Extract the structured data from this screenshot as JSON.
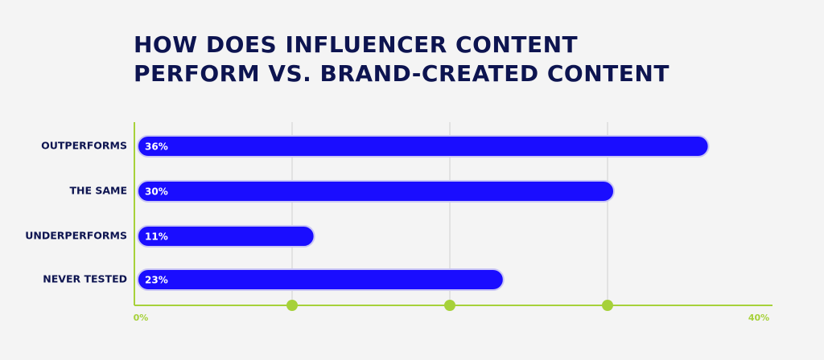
{
  "chart_data": {
    "type": "bar",
    "orientation": "horizontal",
    "title": "HOW DOES INFLUENCER CONTENT PERFORM VS. BRAND-CREATED CONTENT",
    "categories": [
      "OUTPERFORMS",
      "THE SAME",
      "UNDERPERFORMS",
      "NEVER TESTED"
    ],
    "values": [
      36,
      30,
      11,
      23
    ],
    "value_labels": [
      "36%",
      "30%",
      "11%",
      "23%"
    ],
    "color": "#1a0dff",
    "xlim": [
      0,
      40
    ],
    "xticks": [
      {
        "value": 0,
        "label": "0%"
      },
      {
        "value": 10,
        "label": null
      },
      {
        "value": 20,
        "label": null
      },
      {
        "value": 30,
        "label": null
      },
      {
        "value": 40,
        "label": "40%"
      }
    ],
    "grid": true
  }
}
